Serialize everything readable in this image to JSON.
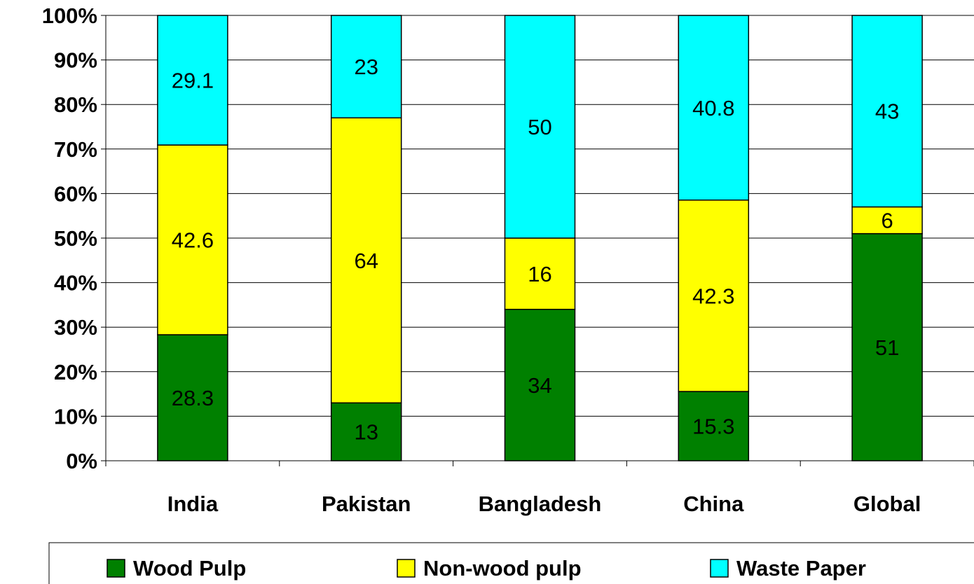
{
  "chart_data": {
    "type": "bar",
    "stacked": true,
    "percent_stacked": true,
    "categories": [
      "India",
      "Pakistan",
      "Bangladesh",
      "China",
      "Global"
    ],
    "series": [
      {
        "name": "Wood Pulp",
        "color": "#008000",
        "values": [
          28.3,
          13,
          34,
          15.3,
          51
        ]
      },
      {
        "name": "Non-wood pulp",
        "color": "#FFFF00",
        "values": [
          42.6,
          64,
          16,
          42.3,
          6
        ]
      },
      {
        "name": "Waste Paper",
        "color": "#00FFFF",
        "values": [
          29.1,
          23,
          50,
          40.8,
          43
        ]
      }
    ],
    "data_labels": [
      [
        "28.3",
        "13",
        "34",
        "15.3",
        "51"
      ],
      [
        "42.6",
        "64",
        "16",
        "42.3",
        "6"
      ],
      [
        "29.1",
        "23",
        "50",
        "40.8",
        "43"
      ]
    ],
    "y_ticks": [
      "0%",
      "10%",
      "20%",
      "30%",
      "40%",
      "50%",
      "60%",
      "70%",
      "80%",
      "90%",
      "100%"
    ],
    "ylim": [
      0,
      100
    ],
    "grid": true,
    "legend_position": "bottom"
  }
}
